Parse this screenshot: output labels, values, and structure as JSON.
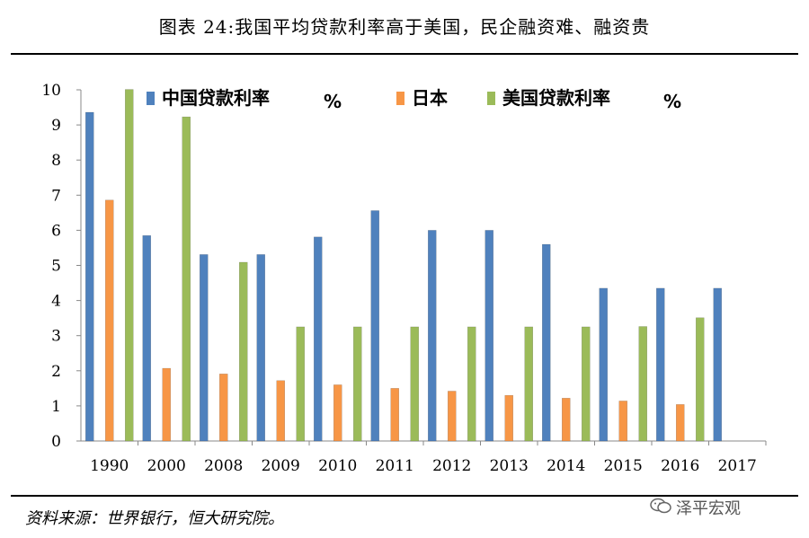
{
  "title": "图表 24:我国平均贷款利率高于美国，民企融资难、融资贵",
  "source": "资料来源：世界银行，恒大研究院。",
  "watermark": {
    "text": "泽平宏观",
    "icon": "wechat-icon"
  },
  "chart_data": {
    "type": "bar",
    "categories": [
      "1990",
      "2000",
      "2008",
      "2009",
      "2010",
      "2011",
      "2012",
      "2013",
      "2014",
      "2015",
      "2016",
      "2017"
    ],
    "series": [
      {
        "name": "中国贷款利率",
        "unit": "%",
        "color": "#4F81BD",
        "values": [
          9.36,
          5.85,
          5.31,
          5.31,
          5.81,
          6.56,
          6.0,
          6.0,
          5.6,
          4.35,
          4.35,
          4.35
        ]
      },
      {
        "name": "日本",
        "unit": "",
        "color": "#F79646",
        "values": [
          6.86,
          2.07,
          1.91,
          1.72,
          1.6,
          1.5,
          1.42,
          1.3,
          1.22,
          1.14,
          1.04,
          null
        ]
      },
      {
        "name": "美国贷款利率",
        "unit": "%",
        "color": "#9BBB59",
        "values": [
          10.01,
          9.23,
          5.09,
          3.25,
          3.25,
          3.25,
          3.25,
          3.25,
          3.25,
          3.26,
          3.51,
          null
        ]
      }
    ],
    "yticks": [
      "0",
      "1",
      "2",
      "3",
      "4",
      "5",
      "6",
      "7",
      "8",
      "9",
      "10"
    ],
    "ylim": [
      0,
      10
    ],
    "legend_position": "top",
    "grid": false
  }
}
